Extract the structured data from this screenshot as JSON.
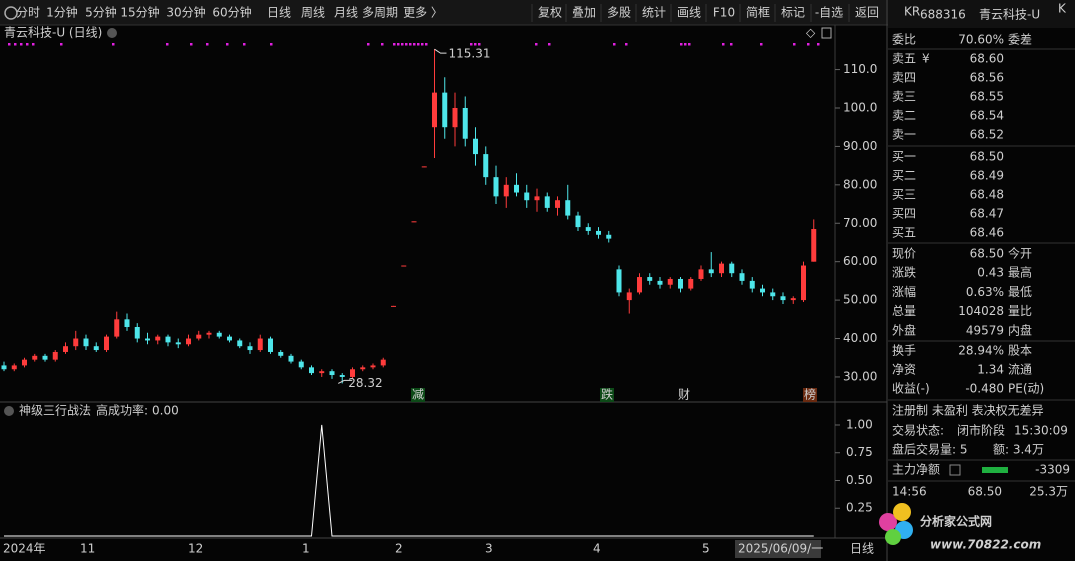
{
  "toolbar": {
    "periods": [
      "分时",
      "1分钟",
      "5分钟",
      "15分钟",
      "30分钟",
      "60分钟",
      "日线",
      "周线",
      "月线",
      "多周期",
      "更多 〉"
    ],
    "active": "日线",
    "tools": [
      "复权",
      "叠加",
      "多股",
      "统计",
      "画线",
      "F10",
      "简框",
      "标记",
      "-自选",
      "返回"
    ]
  },
  "kline": {
    "title": "青云科技-U (日线)",
    "ylim": [
      24,
      121.6
    ],
    "yticks": [
      {
        "value": 110,
        "label": "110.0"
      },
      {
        "value": 100,
        "label": "100.0"
      },
      {
        "value": 90,
        "label": "90.00"
      },
      {
        "value": 80,
        "label": "80.00"
      },
      {
        "value": 70,
        "label": "70.00"
      },
      {
        "value": 60,
        "label": "60.00"
      },
      {
        "value": 50,
        "label": "50.00"
      },
      {
        "value": 40,
        "label": "40.00"
      },
      {
        "value": 30,
        "label": "30.00"
      }
    ],
    "max_label": "115.31",
    "min_label": "28.32",
    "candles": [
      [
        33,
        34,
        31.5,
        32
      ],
      [
        32,
        33.5,
        31.5,
        33
      ],
      [
        33,
        35,
        32.5,
        34.5
      ],
      [
        34.5,
        36,
        34,
        35.5
      ],
      [
        35.5,
        36,
        34,
        34.5
      ],
      [
        34.5,
        37,
        34,
        36.5
      ],
      [
        36.5,
        39,
        36,
        38
      ],
      [
        38,
        42,
        37,
        40
      ],
      [
        40,
        41,
        37,
        38
      ],
      [
        38,
        39,
        36.5,
        37
      ],
      [
        37,
        41,
        36.5,
        40.5
      ],
      [
        40.5,
        47,
        40,
        45
      ],
      [
        45,
        46.5,
        42,
        43
      ],
      [
        43,
        44,
        39,
        40
      ],
      [
        40,
        41.5,
        38.5,
        39.5
      ],
      [
        39.5,
        41,
        38.5,
        40.5
      ],
      [
        40.5,
        41,
        38,
        39
      ],
      [
        39,
        40,
        37.5,
        38.5
      ],
      [
        38.5,
        41,
        38,
        40
      ],
      [
        40,
        42,
        39.5,
        41
      ],
      [
        41,
        42,
        40,
        41.5
      ],
      [
        41.5,
        42,
        40,
        40.5
      ],
      [
        40.5,
        41,
        39,
        39.5
      ],
      [
        39.5,
        40,
        37.5,
        38
      ],
      [
        38,
        39,
        36,
        37
      ],
      [
        37,
        41,
        36.5,
        40
      ],
      [
        40,
        40.5,
        36,
        36.5
      ],
      [
        36.5,
        37,
        35,
        35.5
      ],
      [
        35.5,
        36,
        33.5,
        34
      ],
      [
        34,
        34.5,
        32,
        32.5
      ],
      [
        32.5,
        33,
        30.5,
        31
      ],
      [
        31,
        32,
        30,
        31.5
      ],
      [
        31.5,
        32,
        29.5,
        30.5
      ],
      [
        30.5,
        31,
        28.32,
        30
      ],
      [
        30,
        32.5,
        29.5,
        32
      ],
      [
        32,
        33,
        31.5,
        32.5
      ],
      [
        32.5,
        33.5,
        32,
        33
      ],
      [
        33,
        35,
        32.5,
        34.5
      ],
      [
        48.5,
        48.5,
        48.3,
        48.5
      ],
      [
        59,
        59,
        58.8,
        59
      ],
      [
        70.5,
        70.5,
        70.3,
        70.5
      ],
      [
        84.8,
        84.8,
        84.6,
        84.8
      ],
      [
        95,
        115.31,
        87,
        104
      ],
      [
        104,
        108,
        92,
        95
      ],
      [
        95,
        104,
        90,
        100
      ],
      [
        100,
        103,
        90,
        92
      ],
      [
        92,
        95,
        85,
        88
      ],
      [
        88,
        90,
        80,
        82
      ],
      [
        82,
        85,
        75,
        77
      ],
      [
        77,
        82,
        74,
        80
      ],
      [
        80,
        83,
        77,
        78
      ],
      [
        78,
        80,
        74,
        76
      ],
      [
        76,
        79,
        73,
        77
      ],
      [
        77,
        78,
        73,
        74
      ],
      [
        74,
        77,
        72,
        76
      ],
      [
        76,
        80,
        71,
        72
      ],
      [
        72,
        73,
        68,
        69
      ],
      [
        69,
        70,
        67,
        68
      ],
      [
        68,
        69,
        66,
        67
      ],
      [
        67,
        68,
        65,
        66
      ],
      [
        58,
        59,
        51,
        52
      ],
      [
        50,
        53,
        46.5,
        52
      ],
      [
        52,
        57,
        51.5,
        56
      ],
      [
        56,
        57,
        54,
        55
      ],
      [
        55,
        56,
        53,
        54
      ],
      [
        54,
        56,
        53,
        55.5
      ],
      [
        55.5,
        56,
        52,
        53
      ],
      [
        53,
        56,
        52.5,
        55.5
      ],
      [
        55.5,
        59,
        55,
        58
      ],
      [
        58,
        62.5,
        56,
        57
      ],
      [
        57,
        60,
        56,
        59.5
      ],
      [
        59.5,
        60,
        56,
        57
      ],
      [
        57,
        58,
        54,
        55
      ],
      [
        55,
        56,
        52,
        53
      ],
      [
        53,
        54,
        51,
        52
      ],
      [
        52,
        53,
        50,
        51
      ],
      [
        51,
        52,
        49,
        50
      ],
      [
        50,
        51,
        49,
        50.5
      ],
      [
        50,
        60,
        49.5,
        59
      ],
      [
        60,
        71,
        60,
        68.5
      ]
    ],
    "events": [
      "减",
      "跌",
      "财",
      "榜"
    ],
    "x_labels": [
      "2024年",
      "11",
      "12",
      "1",
      "2",
      "3",
      "4",
      "5"
    ],
    "cursor_date": "2025/06/09/一",
    "period_label": "日线"
  },
  "indicator": {
    "title": "神级三行战法",
    "stat_label": "高成功率:",
    "stat_value": "0.00",
    "ylim": [
      0,
      1.18
    ],
    "yticks": [
      {
        "value": 1,
        "label": "1.00"
      },
      {
        "value": 0.75,
        "label": "0.75"
      },
      {
        "value": 0.5,
        "label": "0.50"
      },
      {
        "value": 0.25,
        "label": "0.25"
      }
    ],
    "values": [
      0,
      0,
      0,
      0,
      0,
      0,
      0,
      0,
      0,
      0,
      0,
      0,
      0,
      0,
      0,
      0,
      0,
      0,
      0,
      0,
      0,
      0,
      0,
      0,
      0,
      0,
      0,
      0,
      0,
      0,
      0,
      1,
      0,
      0,
      0,
      0,
      0,
      0,
      0,
      0,
      0,
      0,
      0,
      0,
      0,
      0,
      0,
      0,
      0,
      0,
      0,
      0,
      0,
      0,
      0,
      0,
      0,
      0,
      0,
      0,
      0,
      0,
      0,
      0,
      0,
      0,
      0,
      0,
      0,
      0,
      0,
      0,
      0,
      0,
      0,
      0,
      0,
      0,
      0,
      0
    ]
  },
  "quote": {
    "badge": "KR",
    "code": "688316",
    "name": "青云科技-U",
    "mark": "K",
    "weibi": [
      "委比",
      "70.60%",
      "委差"
    ],
    "currency": "¥",
    "asks": [
      [
        "卖五",
        "68.60"
      ],
      [
        "卖四",
        "68.56"
      ],
      [
        "卖三",
        "68.55"
      ],
      [
        "卖二",
        "68.54"
      ],
      [
        "卖一",
        "68.52"
      ]
    ],
    "bids": [
      [
        "买一",
        "68.50"
      ],
      [
        "买二",
        "68.49"
      ],
      [
        "买三",
        "68.48"
      ],
      [
        "买四",
        "68.47"
      ],
      [
        "买五",
        "68.46"
      ]
    ],
    "stats": [
      [
        "现价",
        "68.50",
        "今开"
      ],
      [
        "涨跌",
        "0.43",
        "最高"
      ],
      [
        "涨幅",
        "0.63%",
        "最低"
      ],
      [
        "总量",
        "104028",
        "量比"
      ],
      [
        "外盘",
        "49579",
        "内盘"
      ]
    ],
    "fundamentals": [
      [
        "换手",
        "28.94%",
        "股本"
      ],
      [
        "净资",
        "1.34",
        "流通"
      ],
      [
        "收益(-)",
        "-0.480",
        "PE(动)"
      ]
    ],
    "tags": "注册制 未盈利 表决权无差异",
    "status": [
      "交易状态:",
      "闭市阶段",
      "15:30:09"
    ],
    "after_hours": [
      "盘后交易量: 5",
      "额: 3.4万"
    ],
    "main_net": [
      "主力净额",
      "-3309"
    ],
    "tick": [
      "14:56",
      "68.50",
      "25.3万"
    ]
  },
  "watermark": {
    "title": "分析家公式网",
    "url": "www.70822.com"
  }
}
